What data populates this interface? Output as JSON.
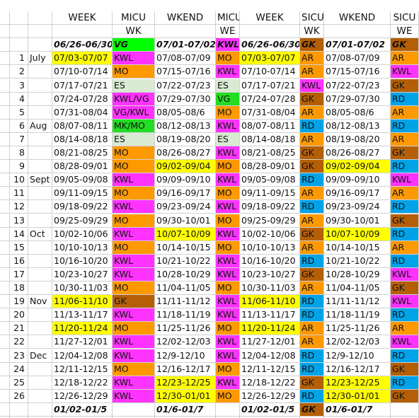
{
  "headers": {
    "row1": [
      "WEEK",
      "MICU",
      "WKEND",
      "MICU",
      "WEEK",
      "SICU",
      "WKEND",
      "SICU"
    ],
    "row2": [
      "",
      "WK",
      "",
      "WE",
      "",
      "WK",
      "",
      "WE"
    ]
  },
  "first_row": {
    "cells": [
      "06/26-06/30",
      "VG",
      "07/01-07/02",
      "KWL",
      "06/26-06/30",
      "GK",
      "07/01-07/02",
      "GK"
    ]
  },
  "rows": [
    {
      "num": "1",
      "month": "July",
      "week": "07/03-07/07",
      "micu_wk": "KWL",
      "wkend": "07/08-07/09",
      "micu_we": "MO",
      "week2": "07/03-07/07",
      "sicu_wk": "AR",
      "wkend2": "07/08-07/09",
      "sicu_we": "AR"
    },
    {
      "num": "2",
      "month": "",
      "week": "07/10-07/14",
      "micu_wk": "MO",
      "wkend": "07/15-07/16",
      "micu_we": "KWL",
      "week2": "07/10-07/14",
      "sicu_wk": "AR",
      "wkend2": "07/15-07/16",
      "sicu_we": "KWL"
    },
    {
      "num": "3",
      "month": "",
      "week": "07/17-07/21",
      "micu_wk": "ES",
      "wkend": "07/22-07/23",
      "micu_we": "ES",
      "week2": "07/17-07/21",
      "sicu_wk": "KWL",
      "wkend2": "07/22-07/23",
      "sicu_we": "GK"
    },
    {
      "num": "4",
      "month": "",
      "week": "07/24-07/28",
      "micu_wk": "KWL/VG",
      "wkend": "07/29-07/30",
      "micu_we": "VG",
      "week2": "07/24-07/28",
      "sicu_wk": "GK",
      "wkend2": "07/29-07/30",
      "sicu_we": "RD"
    },
    {
      "num": "5",
      "month": "",
      "week": "07/31-08/04",
      "micu_wk": "VG/KWL",
      "wkend": "08/05-08/6",
      "micu_we": "MO",
      "week2": "07/31-08/04",
      "sicu_wk": "AR",
      "wkend2": "08/05-08/6",
      "sicu_we": "AR"
    },
    {
      "num": "6",
      "month": "Aug",
      "week": "08/07-08/11",
      "micu_wk": "MK/MO",
      "wkend": "08/12-08/13",
      "micu_we": "KWL",
      "week2": "08/07-08/11",
      "sicu_wk": "RD",
      "wkend2": "08/12-08/13",
      "sicu_we": "RD"
    },
    {
      "num": "7",
      "month": "",
      "week": "08/14-08/18",
      "micu_wk": "ES",
      "wkend": "08/19-08/20",
      "micu_we": "ES",
      "week2": "08/14-08/18",
      "sicu_wk": "AR",
      "wkend2": "08/19-08/20",
      "sicu_we": "AR"
    },
    {
      "num": "8",
      "month": "",
      "week": "08/21-08/25",
      "micu_wk": "MO",
      "wkend": "08/26-08/27",
      "micu_we": "KWL",
      "week2": "08/21-08/25",
      "sicu_wk": "GK",
      "wkend2": "08/26-08/27",
      "sicu_we": "GK"
    },
    {
      "num": "9",
      "month": "",
      "week": "08/28-09/01",
      "micu_wk": "MO",
      "wkend": "09/02-09/04",
      "micu_we": "MO",
      "week2": "08/28-09/01",
      "sicu_wk": "GK",
      "wkend2": "09/02-09/04",
      "sicu_we": "RD"
    },
    {
      "num": "10",
      "month": "Sept",
      "week": "09/05-09/08",
      "micu_wk": "KWL",
      "wkend": "09/09-09/10",
      "micu_we": "KWL",
      "week2": "09/05-09/08",
      "sicu_wk": "RD",
      "wkend2": "09/09-09/10",
      "sicu_we": "KWL"
    },
    {
      "num": "11",
      "month": "",
      "week": "09/11-09/15",
      "micu_wk": "MO",
      "wkend": "09/16-09/17",
      "micu_we": "MO",
      "week2": "09/11-09/15",
      "sicu_wk": "AR",
      "wkend2": "09/16-09/17",
      "sicu_we": "AR"
    },
    {
      "num": "12",
      "month": "",
      "week": "09/18-09/22",
      "micu_wk": "KWL",
      "wkend": "09/23-09/24",
      "micu_we": "KWL",
      "week2": "09/18-09/22",
      "sicu_wk": "RD",
      "wkend2": "09/23-09/24",
      "sicu_we": "RD"
    },
    {
      "num": "13",
      "month": "",
      "week": "09/25-09/29",
      "micu_wk": "MO",
      "wkend": "09/30-10/01",
      "micu_we": "MO",
      "week2": "09/25-09/29",
      "sicu_wk": "AR",
      "wkend2": "09/30-10/01",
      "sicu_we": "GK"
    },
    {
      "num": "14",
      "month": "Oct",
      "week": "10/02-10/06",
      "micu_wk": "KWL",
      "wkend": "10/07-10/09",
      "micu_we": "KWL",
      "week2": "10/02-10/06",
      "sicu_wk": "GK",
      "wkend2": "10/07-10/09",
      "sicu_we": "RD"
    },
    {
      "num": "15",
      "month": "",
      "week": "10/10-10/13",
      "micu_wk": "MO",
      "wkend": "10/14-10/15",
      "micu_we": "MO",
      "week2": "10/10-10/13",
      "sicu_wk": "AR",
      "wkend2": "10/14-10/15",
      "sicu_we": "AR"
    },
    {
      "num": "16",
      "month": "",
      "week": "10/16-10/20",
      "micu_wk": "KWL",
      "wkend": "10/21-10/22",
      "micu_we": "KWL",
      "week2": "10/16-10/20",
      "sicu_wk": "RD",
      "wkend2": "10/21-10/22",
      "sicu_we": "RD"
    },
    {
      "num": "17",
      "month": "",
      "week": "10/23-10/27",
      "micu_wk": "KWL",
      "wkend": "10/28-10/29",
      "micu_we": "KWL",
      "week2": "10/23-10/27",
      "sicu_wk": "GK",
      "wkend2": "10/28-10/29",
      "sicu_we": "KWL"
    },
    {
      "num": "18",
      "month": "",
      "week": "10/30-11/03",
      "micu_wk": "MO",
      "wkend": "11/04-11/05",
      "micu_we": "MO",
      "week2": "10/30-11/03",
      "sicu_wk": "AR",
      "wkend2": "11/04-11/05",
      "sicu_we": "GK"
    },
    {
      "num": "19",
      "month": "Nov",
      "week": "11/06-11/10",
      "micu_wk": "GK",
      "wkend": "11/11-11/12",
      "micu_we": "KWL",
      "week2": "11/06-11/10",
      "sicu_wk": "RD",
      "wkend2": "11/11-11/12",
      "sicu_we": "KWL"
    },
    {
      "num": "20",
      "month": "",
      "week": "11/13-11/17",
      "micu_wk": "KWL",
      "wkend": "11/18-11/19",
      "micu_we": "KWL",
      "week2": "11/13-11/17",
      "sicu_wk": "RD",
      "wkend2": "11/18-11/19",
      "sicu_we": "RD"
    },
    {
      "num": "21",
      "month": "",
      "week": "11/20-11/24",
      "micu_wk": "MO",
      "wkend": "11/25-11/26",
      "micu_we": "MO",
      "week2": "11/20-11/24",
      "sicu_wk": "AR",
      "wkend2": "11/25-11/26",
      "sicu_we": "AR"
    },
    {
      "num": "22",
      "month": "",
      "week": "11/27-12/01",
      "micu_wk": "KWL",
      "wkend": "12/02-12/03",
      "micu_we": "KWL",
      "week2": "11/27-12/01",
      "sicu_wk": "AR",
      "wkend2": "12/02-12/03",
      "sicu_we": "KWL"
    },
    {
      "num": "23",
      "month": "Dec",
      "week": "12/04-12/08",
      "micu_wk": "KWL",
      "wkend": "12/9-12/10",
      "micu_we": "KWL",
      "week2": "12/04-12/08",
      "sicu_wk": "RD",
      "wkend2": "12/9-12/10",
      "sicu_we": "RD"
    },
    {
      "num": "24",
      "month": "",
      "week": "12/11-12/15",
      "micu_wk": "MO",
      "wkend": "12/16-12/17",
      "micu_we": "MO",
      "week2": "12/11-12/15",
      "sicu_wk": "RD",
      "wkend2": "12/16-12/17",
      "sicu_we": "GK"
    },
    {
      "num": "25",
      "month": "",
      "week": "12/18-12/22",
      "micu_wk": "KWL",
      "wkend": "12/23-12/25",
      "micu_we": "KWL",
      "week2": "12/18-12/22",
      "sicu_wk": "GK",
      "wkend2": "12/23-12/25",
      "sicu_we": "RD"
    },
    {
      "num": "26",
      "month": "",
      "week": "12/26-12/29",
      "micu_wk": "KWL",
      "wkend": "12/30-01/01",
      "micu_we": "MO",
      "week2": "12/26-12/29",
      "sicu_wk": "RD",
      "wkend2": "12/30-01/01",
      "sicu_we": "GK"
    }
  ],
  "last_row": {
    "cells": [
      "01/02-01/5",
      "",
      "01/6-01/7",
      "",
      "01/02-01/5",
      "GK",
      "01/6-01/7",
      ""
    ]
  },
  "colors": {
    "KWL": "#ff33ff",
    "MO": "#ff9900",
    "AR": "#ff9900",
    "VG": "#22dd22",
    "ES": "#d9ead3",
    "GK": "#b45f06",
    "RD": "#00a3e8",
    "MK/MO": "#22dd22",
    "KWL/VG": "#ff33ff",
    "VG/KWL": "#ff33ff",
    "yellow": "#ffff00",
    "green": "#00ff00"
  },
  "yellow_rows": {
    "week": [
      1,
      19,
      21
    ],
    "wkend": [
      9,
      14,
      25,
      26
    ],
    "week2": [
      1,
      19,
      21
    ],
    "wkend2": [
      9,
      14,
      25,
      26
    ]
  }
}
